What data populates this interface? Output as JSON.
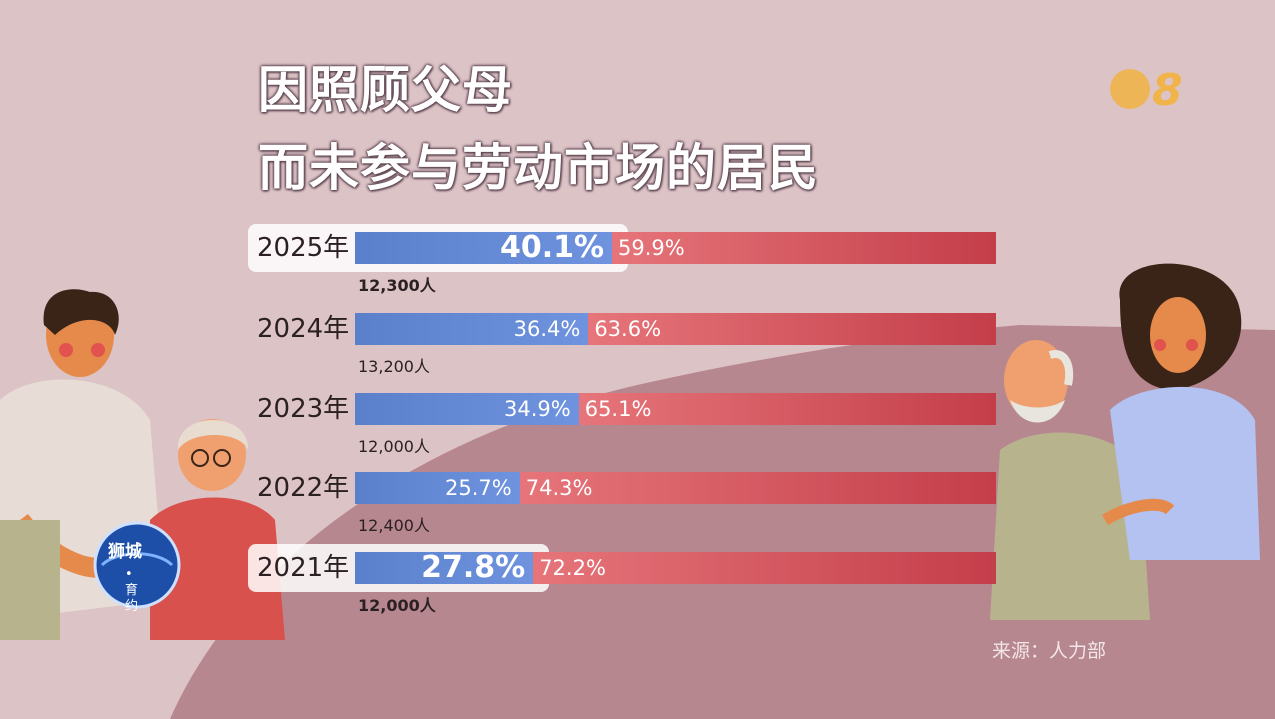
{
  "title": {
    "line1": "因照顾父母",
    "line2": "而未参与劳动市场的居民"
  },
  "logo": {
    "text": "8"
  },
  "badge": {
    "line1": "狮城",
    "line2": "•育约"
  },
  "source": "来源：人力部",
  "colors": {
    "blue": "#5a80cc",
    "red": "#d14b55",
    "background": "#dcc3c6",
    "accent_shape": "#b78790"
  },
  "chart_data": {
    "type": "bar",
    "stacked": true,
    "orientation": "horizontal",
    "categories": [
      "2025年",
      "2024年",
      "2023年",
      "2022年",
      "2021年"
    ],
    "series": [
      {
        "values": [
          40.1,
          36.4,
          34.9,
          25.7,
          27.8
        ]
      },
      {
        "values": [
          59.9,
          63.6,
          65.1,
          74.3,
          72.2
        ]
      }
    ],
    "value_labels_left": [
      "40.1%",
      "36.4%",
      "34.9%",
      "25.7%",
      "27.8%"
    ],
    "value_labels_right": [
      "59.9%",
      "63.6%",
      "65.1%",
      "74.3%",
      "72.2%"
    ],
    "counts": [
      "12,300人",
      "13,200人",
      "12,000人",
      "12,400人",
      "12,000人"
    ],
    "highlighted": [
      "2025年",
      "2021年"
    ],
    "xlim": [
      0,
      100
    ],
    "grid": false
  }
}
